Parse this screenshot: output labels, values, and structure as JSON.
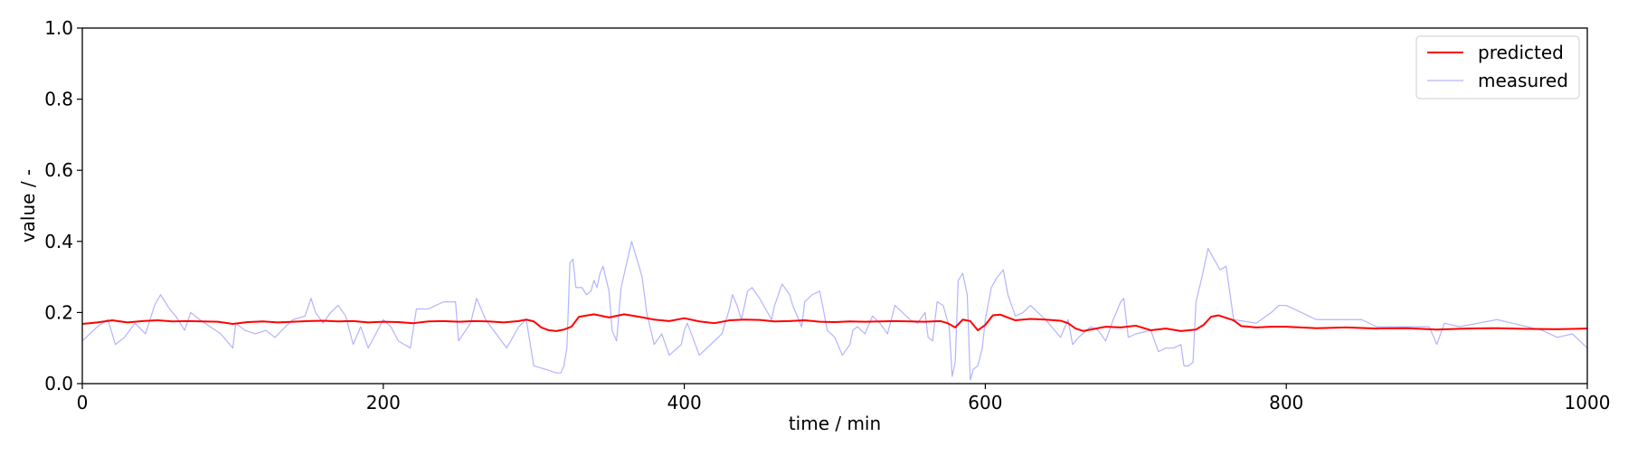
{
  "chart_data": {
    "type": "line",
    "title": "",
    "xlabel": "time / min",
    "ylabel": "value / -",
    "xlim": [
      0,
      1000
    ],
    "ylim": [
      0.0,
      1.0
    ],
    "xticks": [
      0,
      200,
      400,
      600,
      800,
      1000
    ],
    "xtick_labels": [
      "0",
      "200",
      "400",
      "600",
      "800",
      "1000"
    ],
    "yticks": [
      0.0,
      0.2,
      0.4,
      0.6,
      0.8,
      1.0
    ],
    "ytick_labels": [
      "0.0",
      "0.2",
      "0.4",
      "0.6",
      "0.8",
      "1.0"
    ],
    "grid": false,
    "legend_position": "top-right",
    "series": [
      {
        "name": "predicted",
        "color": "#ff0000",
        "x": [
          0,
          10,
          20,
          30,
          40,
          50,
          60,
          70,
          80,
          90,
          100,
          110,
          120,
          130,
          140,
          150,
          160,
          170,
          180,
          190,
          200,
          210,
          220,
          230,
          240,
          250,
          260,
          270,
          280,
          290,
          295,
          300,
          305,
          310,
          315,
          320,
          325,
          330,
          340,
          350,
          360,
          370,
          380,
          390,
          400,
          410,
          420,
          430,
          440,
          450,
          460,
          470,
          480,
          490,
          500,
          510,
          520,
          530,
          540,
          550,
          560,
          570,
          575,
          580,
          585,
          590,
          595,
          600,
          605,
          610,
          620,
          630,
          640,
          650,
          655,
          660,
          665,
          670,
          680,
          690,
          700,
          710,
          720,
          730,
          740,
          745,
          750,
          755,
          760,
          765,
          770,
          780,
          790,
          800,
          820,
          840,
          860,
          880,
          900,
          920,
          940,
          960,
          980,
          1000
        ],
        "y": [
          0.168,
          0.172,
          0.178,
          0.172,
          0.176,
          0.178,
          0.175,
          0.176,
          0.175,
          0.174,
          0.168,
          0.173,
          0.175,
          0.172,
          0.174,
          0.176,
          0.177,
          0.175,
          0.176,
          0.172,
          0.174,
          0.173,
          0.17,
          0.175,
          0.176,
          0.174,
          0.176,
          0.175,
          0.172,
          0.176,
          0.18,
          0.175,
          0.158,
          0.15,
          0.148,
          0.152,
          0.16,
          0.188,
          0.195,
          0.186,
          0.195,
          0.188,
          0.18,
          0.176,
          0.184,
          0.175,
          0.17,
          0.178,
          0.18,
          0.179,
          0.175,
          0.176,
          0.178,
          0.174,
          0.173,
          0.175,
          0.174,
          0.175,
          0.176,
          0.175,
          0.174,
          0.176,
          0.17,
          0.158,
          0.18,
          0.176,
          0.15,
          0.165,
          0.192,
          0.194,
          0.178,
          0.182,
          0.18,
          0.177,
          0.17,
          0.155,
          0.148,
          0.152,
          0.16,
          0.158,
          0.163,
          0.15,
          0.155,
          0.148,
          0.152,
          0.165,
          0.188,
          0.192,
          0.185,
          0.178,
          0.162,
          0.158,
          0.16,
          0.16,
          0.156,
          0.158,
          0.155,
          0.156,
          0.152,
          0.155,
          0.156,
          0.154,
          0.153,
          0.155
        ]
      },
      {
        "name": "measured",
        "color": "#b3b3ff",
        "x": [
          0,
          10,
          17,
          22,
          28,
          35,
          42,
          48,
          52,
          58,
          62,
          68,
          72,
          78,
          85,
          92,
          100,
          102,
          108,
          115,
          122,
          128,
          135,
          140,
          148,
          152,
          155,
          160,
          165,
          170,
          175,
          180,
          185,
          190,
          195,
          200,
          205,
          210,
          218,
          222,
          225,
          230,
          240,
          248,
          250,
          258,
          262,
          268,
          275,
          282,
          290,
          295,
          300,
          308,
          315,
          318,
          320,
          322,
          324,
          326,
          328,
          332,
          335,
          338,
          340,
          342,
          344,
          346,
          350,
          352,
          355,
          358,
          365,
          372,
          375,
          380,
          385,
          390,
          398,
          400,
          402,
          410,
          425,
          430,
          432,
          435,
          438,
          442,
          445,
          450,
          458,
          460,
          465,
          470,
          472,
          478,
          480,
          485,
          490,
          495,
          500,
          505,
          510,
          512,
          515,
          520,
          525,
          530,
          535,
          540,
          545,
          550,
          555,
          560,
          562,
          565,
          568,
          572,
          576,
          578,
          580,
          582,
          585,
          588,
          590,
          592,
          595,
          598,
          600,
          604,
          608,
          612,
          615,
          620,
          625,
          630,
          640,
          650,
          655,
          658,
          662,
          670,
          675,
          680,
          685,
          690,
          692,
          695,
          700,
          710,
          715,
          720,
          725,
          730,
          732,
          735,
          738,
          740,
          744,
          748,
          752,
          756,
          760,
          765,
          780,
          790,
          795,
          800,
          810,
          820,
          850,
          860,
          870,
          880,
          895,
          900,
          905,
          915,
          940,
          950,
          960,
          970,
          980,
          990,
          1000
        ],
        "y": [
          0.12,
          0.16,
          0.18,
          0.11,
          0.13,
          0.17,
          0.14,
          0.22,
          0.25,
          0.21,
          0.19,
          0.15,
          0.2,
          0.18,
          0.16,
          0.14,
          0.1,
          0.17,
          0.15,
          0.14,
          0.15,
          0.13,
          0.16,
          0.18,
          0.19,
          0.24,
          0.2,
          0.17,
          0.2,
          0.22,
          0.19,
          0.11,
          0.16,
          0.1,
          0.14,
          0.18,
          0.16,
          0.12,
          0.1,
          0.21,
          0.21,
          0.21,
          0.23,
          0.23,
          0.12,
          0.17,
          0.24,
          0.18,
          0.14,
          0.1,
          0.16,
          0.18,
          0.05,
          0.04,
          0.03,
          0.03,
          0.05,
          0.1,
          0.34,
          0.35,
          0.27,
          0.27,
          0.25,
          0.26,
          0.29,
          0.27,
          0.31,
          0.33,
          0.26,
          0.15,
          0.12,
          0.27,
          0.4,
          0.3,
          0.2,
          0.11,
          0.14,
          0.08,
          0.11,
          0.15,
          0.17,
          0.08,
          0.14,
          0.21,
          0.25,
          0.22,
          0.18,
          0.26,
          0.27,
          0.24,
          0.18,
          0.22,
          0.28,
          0.25,
          0.22,
          0.16,
          0.23,
          0.25,
          0.26,
          0.15,
          0.13,
          0.08,
          0.11,
          0.15,
          0.16,
          0.14,
          0.19,
          0.17,
          0.14,
          0.22,
          0.2,
          0.18,
          0.17,
          0.2,
          0.13,
          0.12,
          0.23,
          0.22,
          0.16,
          0.02,
          0.06,
          0.29,
          0.31,
          0.25,
          0.01,
          0.04,
          0.05,
          0.1,
          0.18,
          0.27,
          0.3,
          0.32,
          0.25,
          0.19,
          0.2,
          0.22,
          0.18,
          0.13,
          0.18,
          0.11,
          0.13,
          0.16,
          0.15,
          0.12,
          0.18,
          0.23,
          0.24,
          0.13,
          0.14,
          0.15,
          0.09,
          0.1,
          0.1,
          0.11,
          0.05,
          0.05,
          0.06,
          0.23,
          0.3,
          0.38,
          0.35,
          0.32,
          0.33,
          0.18,
          0.17,
          0.2,
          0.22,
          0.22,
          0.2,
          0.18,
          0.18,
          0.16,
          0.16,
          0.16,
          0.16,
          0.11,
          0.17,
          0.16,
          0.18,
          0.17,
          0.16,
          0.15,
          0.13,
          0.14,
          0.1
        ]
      }
    ]
  }
}
